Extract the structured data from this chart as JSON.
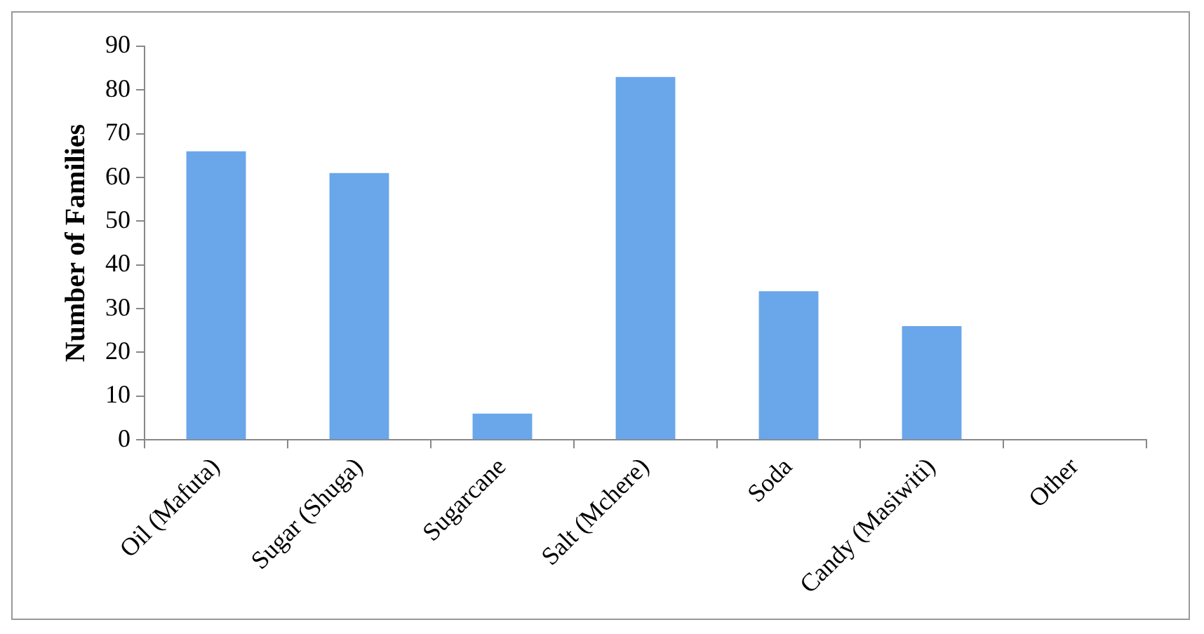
{
  "chart_data": {
    "type": "bar",
    "ylabel": "Number of Families",
    "categories": [
      "Oil (Mafuta)",
      "Sugar (Shuga)",
      "Sugarcane",
      "Salt (Mchere)",
      "Soda",
      "Candy (Masiwiti)",
      "Other"
    ],
    "values": [
      66,
      61,
      6,
      83,
      34,
      26,
      0
    ],
    "color": "#6aa6ea",
    "ylim": [
      0,
      90
    ],
    "yticks": [
      0,
      10,
      20,
      30,
      40,
      50,
      60,
      70,
      80,
      90
    ],
    "grid": false,
    "legend": false
  }
}
